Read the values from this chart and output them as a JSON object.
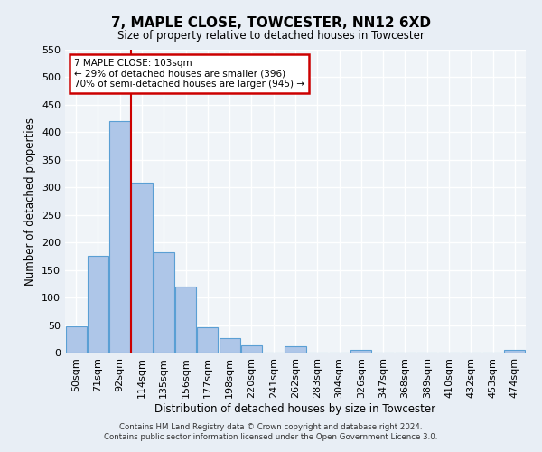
{
  "title": "7, MAPLE CLOSE, TOWCESTER, NN12 6XD",
  "subtitle": "Size of property relative to detached houses in Towcester",
  "xlabel": "Distribution of detached houses by size in Towcester",
  "ylabel": "Number of detached properties",
  "bar_labels": [
    "50sqm",
    "71sqm",
    "92sqm",
    "114sqm",
    "135sqm",
    "156sqm",
    "177sqm",
    "198sqm",
    "220sqm",
    "241sqm",
    "262sqm",
    "283sqm",
    "304sqm",
    "326sqm",
    "347sqm",
    "368sqm",
    "389sqm",
    "410sqm",
    "432sqm",
    "453sqm",
    "474sqm"
  ],
  "bar_values": [
    47,
    175,
    420,
    308,
    183,
    120,
    46,
    27,
    13,
    0,
    11,
    0,
    0,
    5,
    0,
    0,
    0,
    0,
    0,
    0,
    5
  ],
  "bar_color": "#aec6e8",
  "bar_edge_color": "#5a9fd4",
  "vline_color": "#cc0000",
  "annotation_text": "7 MAPLE CLOSE: 103sqm\n← 29% of detached houses are smaller (396)\n70% of semi-detached houses are larger (945) →",
  "annotation_box_color": "#ffffff",
  "annotation_box_edge_color": "#cc0000",
  "ylim": [
    0,
    550
  ],
  "yticks": [
    0,
    50,
    100,
    150,
    200,
    250,
    300,
    350,
    400,
    450,
    500,
    550
  ],
  "bg_color": "#e8eef5",
  "plot_bg_color": "#f0f4f8",
  "footer_line1": "Contains HM Land Registry data © Crown copyright and database right 2024.",
  "footer_line2": "Contains public sector information licensed under the Open Government Licence 3.0."
}
